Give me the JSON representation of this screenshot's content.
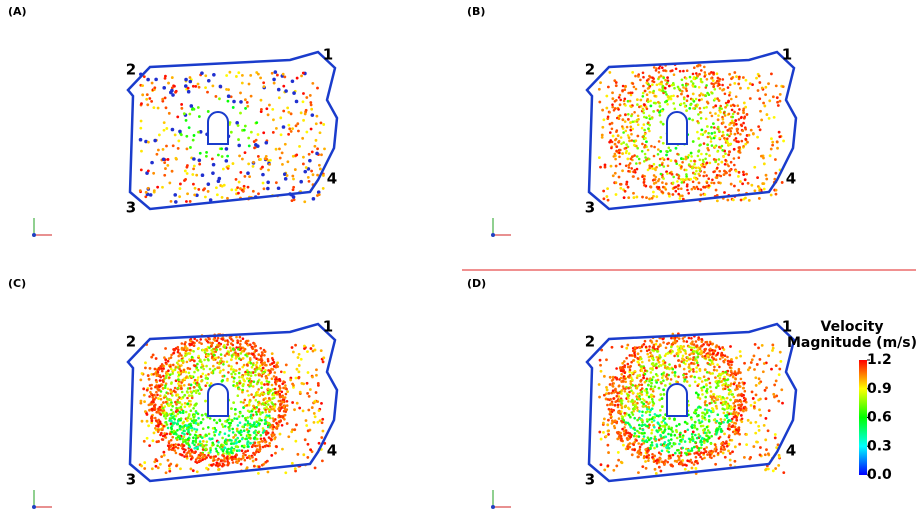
{
  "panels": [
    {
      "label": "(A)"
    },
    {
      "label": "(B)"
    },
    {
      "label": "(C)"
    },
    {
      "label": "(D)"
    }
  ],
  "corner_labels": [
    "1",
    "2",
    "3",
    "4"
  ],
  "colorbar": {
    "title_lines": [
      "Velocity",
      "Magnitude (m/s)"
    ],
    "lim": [
      0,
      1.2
    ],
    "ticks": [
      {
        "value": 0,
        "label": "0.0"
      },
      0.3,
      0.6,
      0.9,
      1.2
    ]
  }
}
